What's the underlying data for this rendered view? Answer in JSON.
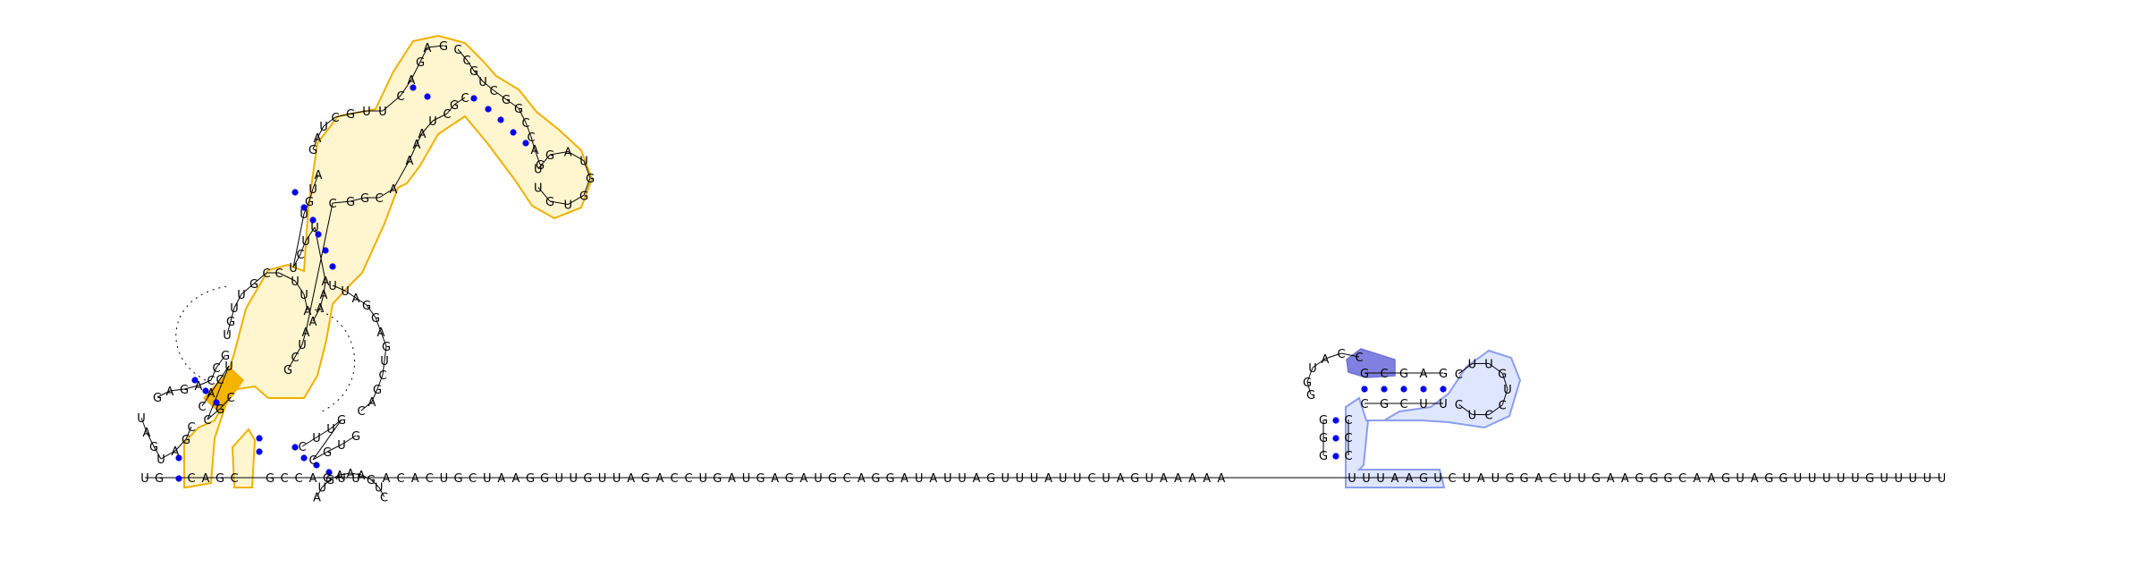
{
  "sequence": "UGCAGCGCCAGUUACACUGCUAAGGUUGUUAGACCUGAUGAGAUGCAGGAUAUUAGUUUAUUCUAGUAAAAAUUUAAGUCUAUGGACUUGAAGGGCAAGUAGGUUUUUGUUUUU",
  "main_strand": {
    "prefix": [
      "U",
      "G"
    ],
    "after_first": [
      "C",
      "A",
      "G",
      "C"
    ],
    "after_second": [
      "G",
      "C",
      "C",
      "A",
      "G",
      "U",
      "U"
    ],
    "linear_a": [
      "A",
      "C",
      "A",
      "C",
      "U",
      "G",
      "C",
      "U",
      "A",
      "A",
      "G",
      "G",
      "U",
      "U",
      "G",
      "U",
      "U",
      "A",
      "G",
      "A",
      "C",
      "C",
      "U",
      "G",
      "A",
      "U",
      "G",
      "A",
      "G",
      "A",
      "U",
      "G",
      "C",
      "A",
      "G",
      "G",
      "A",
      "U",
      "A",
      "U",
      "U",
      "A",
      "G",
      "U",
      "U",
      "U",
      "A",
      "U",
      "U",
      "C",
      "U",
      "A",
      "G",
      "U",
      "A",
      "A",
      "A",
      "A",
      "A"
    ],
    "hairpin_base": [
      "U",
      "U",
      "U",
      "A",
      "A",
      "G"
    ],
    "linear_b": [
      "U",
      "C",
      "U",
      "A",
      "U",
      "G",
      "G",
      "A",
      "C",
      "U",
      "U",
      "G",
      "A",
      "A",
      "G",
      "G",
      "G",
      "C",
      "A",
      "A",
      "G",
      "U",
      "A",
      "G",
      "G",
      "U",
      "U",
      "U",
      "U",
      "U",
      "G",
      "U",
      "U",
      "U",
      "U",
      "U"
    ]
  },
  "left_structure": {
    "outer_loop": [
      "U",
      "A",
      "G",
      "U",
      "A",
      "G",
      "C",
      "G",
      "A",
      "G",
      "A",
      "C",
      "C",
      "G"
    ],
    "stem_low": [
      "C",
      "A",
      "C",
      "U",
      "C",
      "G",
      "C"
    ],
    "stem_mid": [
      "U",
      "G",
      "U",
      "U",
      "G",
      "C",
      "C",
      "U",
      "U",
      "A"
    ],
    "upper_left": [
      "A",
      "A",
      "A",
      "A",
      "U",
      "U",
      "C",
      "U",
      "U",
      "G",
      "U",
      "A"
    ],
    "multiloop_top": [
      "G",
      "A",
      "U",
      "C",
      "G",
      "U",
      "U",
      "C",
      "A",
      "G",
      "A",
      "G"
    ],
    "right_arm": [
      "C",
      "C",
      "G",
      "U",
      "C",
      "G",
      "G",
      "C",
      "C",
      "A",
      "G"
    ],
    "terminal_loop": [
      "U",
      "G",
      "A",
      "U",
      "G",
      "G",
      "U",
      "G",
      "U"
    ],
    "inner_right": [
      "C",
      "G",
      "C",
      "U",
      "A",
      "A",
      "A",
      "A",
      "C",
      "G",
      "G",
      "C",
      "A",
      "U",
      "C",
      "G"
    ],
    "pk_loop": [
      "U",
      "U",
      "A",
      "G",
      "G",
      "A",
      "G",
      "U",
      "C",
      "G",
      "A",
      "C"
    ],
    "bottom_loop": [
      "A",
      "U",
      "G",
      "A",
      "A",
      "A",
      "G",
      "U",
      "C"
    ],
    "small_helix": [
      "C",
      "U",
      "U",
      "G",
      "C",
      "G",
      "U",
      "G"
    ]
  },
  "right_structure": {
    "stem_left": [
      "G",
      "G",
      "G"
    ],
    "stem_right": [
      "C",
      "C",
      "C"
    ],
    "upper_left": [
      "G",
      "G",
      "U",
      "A",
      "C",
      "C"
    ],
    "upper_mid": [
      "G",
      "C",
      "G",
      "A",
      "G"
    ],
    "loop": [
      "C",
      "U",
      "U",
      "G",
      "U",
      "C",
      "C",
      "U",
      "C"
    ],
    "lower_mid": [
      "C",
      "G",
      "C",
      "U",
      "U"
    ]
  },
  "highlight_colors": {
    "yellow_fill": "#fff6d0",
    "yellow_stroke": "#f0b000",
    "yellow_dark": "#f5b400",
    "blue_fill": "#dfe6ff",
    "blue_stroke": "#8c9cf0",
    "blue_dark": "#8080e0",
    "base_pair": "#0000ee"
  }
}
